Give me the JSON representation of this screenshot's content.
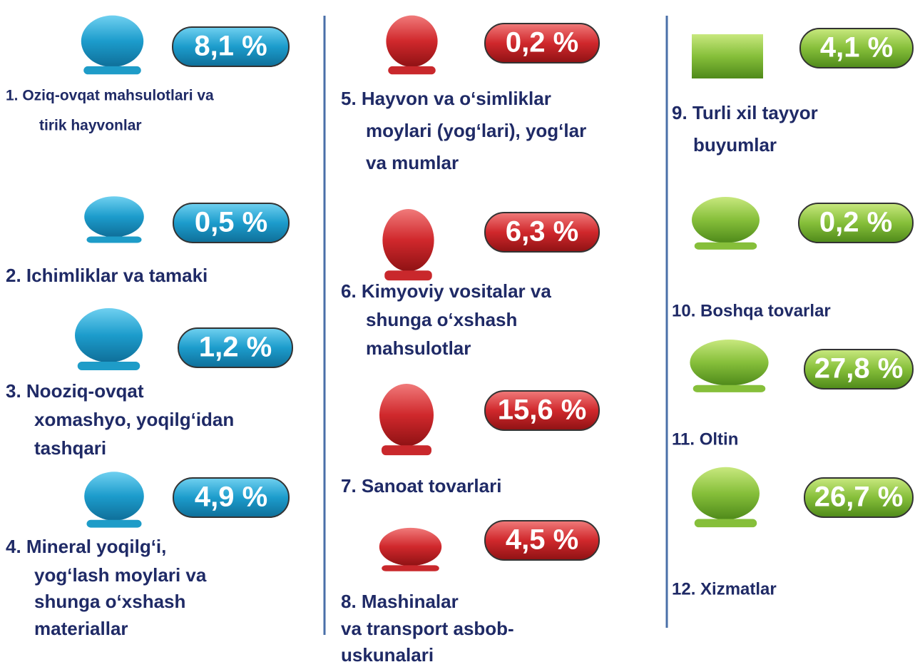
{
  "items": [
    {
      "lines": [
        "1. Oziq-ovqat mahsulotlari va",
        "tirik hayvonlar"
      ],
      "share": "8,1 %"
    },
    {
      "lines": [
        "2. Ichimliklar va tamaki"
      ],
      "share": "0,5 %"
    },
    {
      "lines": [
        "3. Nooziq-ovqat",
        "xomashyo, yoqilg‘idan",
        "tashqari"
      ],
      "share": "1,2 %"
    },
    {
      "lines": [
        "4. Mineral yoqilg‘i,",
        "yog‘lash moylari va",
        "shunga o‘xshash",
        "materiallar"
      ],
      "share": "4,9 %"
    },
    {
      "lines": [
        "5. Hayvon va o‘simliklar",
        "moylari (yog‘lari), yog‘lar",
        "va mumlar"
      ],
      "share": "0,2 %"
    },
    {
      "lines": [
        "6. Kimyoviy vositalar va",
        "shunga o‘xshash",
        "mahsulotlar"
      ],
      "share": "6,3 %"
    },
    {
      "lines": [
        "7. Sanoat tovarlari"
      ],
      "share": "15,6 %"
    },
    {
      "lines": [
        "8. Mashinalar",
        "va transport asbob-",
        "uskunalari"
      ],
      "share": "4,5 %"
    },
    {
      "lines": [
        "9. Turli xil tayyor",
        "buyumlar"
      ],
      "share": "4,1 %"
    },
    {
      "lines": [
        "10. Boshqa tovarlar"
      ],
      "share": "0,2 %"
    },
    {
      "lines": [
        "11. Oltin"
      ],
      "share": "27,8 %"
    },
    {
      "lines": [
        "12. Xizmatlar"
      ],
      "share": "26,7 %"
    }
  ]
}
